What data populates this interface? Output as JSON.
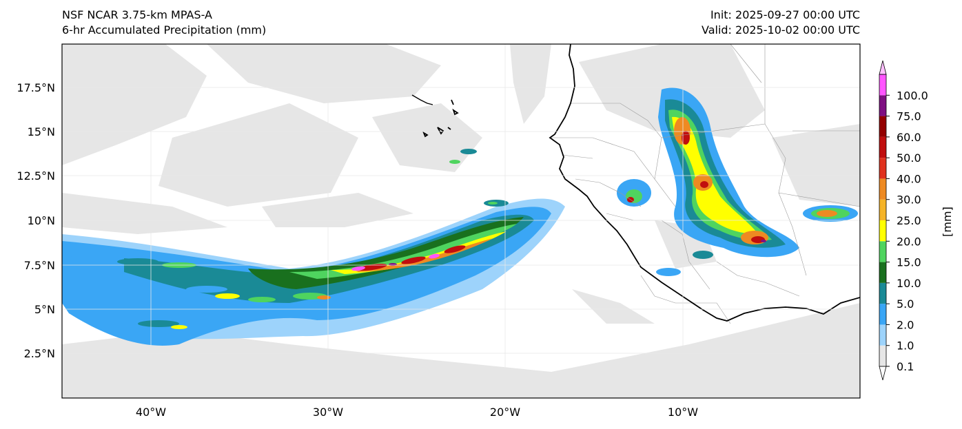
{
  "title": {
    "model": "NSF NCAR 3.75-km MPAS-A",
    "field": "6-hr Accumulated Precipitation (mm)",
    "init": "Init: 2025-09-27 00:00 UTC",
    "valid": "Valid: 2025-10-02 00:00 UTC"
  },
  "map": {
    "lat_labels": [
      "17.5°N",
      "15°N",
      "12.5°N",
      "10°N",
      "7.5°N",
      "5°N",
      "2.5°N"
    ],
    "lon_labels": [
      "40°W",
      "30°W",
      "20°W",
      "10°W"
    ],
    "extent": {
      "lon_min": -45,
      "lon_max": 0,
      "lat_min": 0,
      "lat_max": 20
    },
    "colors": {
      "frame": "#000000",
      "coastline": "#000000",
      "borders": "#9a9a9a",
      "gridlines": "#e8e8e8",
      "background": "#ffffff"
    }
  },
  "colorbar": {
    "unit_label": "[mm]",
    "levels": [
      "0.1",
      "1.0",
      "2.0",
      "5.0",
      "10.0",
      "15.0",
      "20.0",
      "25.0",
      "30.0",
      "40.0",
      "50.0",
      "60.0",
      "75.0",
      "100.0"
    ],
    "colors": [
      "#e6e6e6",
      "#9dd3fb",
      "#3aa6f5",
      "#1a8a96",
      "#19701e",
      "#4fd45f",
      "#ffff00",
      "#f5b428",
      "#ee8a22",
      "#e0321e",
      "#c00e0e",
      "#940000",
      "#7f0f82",
      "#ff55ff"
    ]
  }
}
